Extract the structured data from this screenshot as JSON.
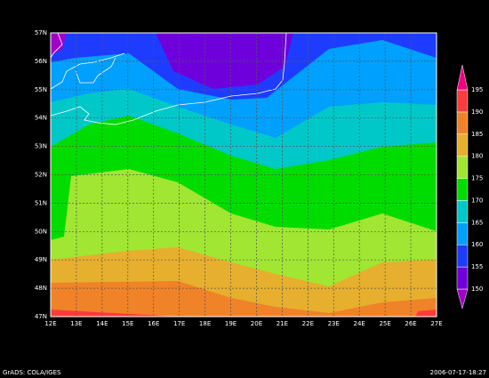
{
  "map": {
    "lon_labels": [
      "12E",
      "13E",
      "14E",
      "15E",
      "16E",
      "17E",
      "18E",
      "19E",
      "20E",
      "21E",
      "22E",
      "23E",
      "24E",
      "25E",
      "26E",
      "27E"
    ],
    "lat_labels": [
      "47N",
      "48N",
      "49N",
      "50N",
      "51N",
      "52N",
      "53N",
      "54N",
      "55N",
      "56N",
      "57N"
    ],
    "colorbar": {
      "levels": [
        150,
        155,
        160,
        165,
        170,
        175,
        180,
        185,
        190,
        195
      ],
      "colors": [
        "#a000c8",
        "#6e00dc",
        "#1e3cff",
        "#00a0ff",
        "#00c8c8",
        "#00dc00",
        "#a0e632",
        "#e6af2d",
        "#f08228",
        "#fa3c3c",
        "#f00082"
      ]
    },
    "footer_left": "GrADS: COLA/IGES",
    "footer_right": "2006-07-17-18:27"
  }
}
